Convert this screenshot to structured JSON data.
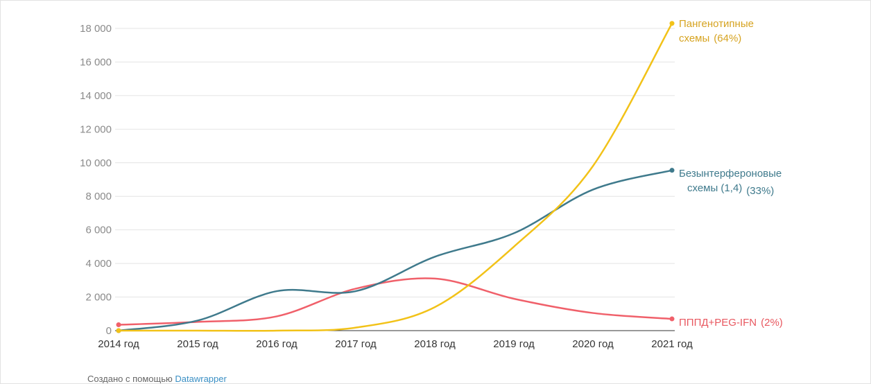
{
  "chart_data": {
    "type": "line",
    "x": [
      "2014 год",
      "2015 год",
      "2016 год",
      "2017 год",
      "2018 год",
      "2019 год",
      "2020 год",
      "2021 год"
    ],
    "ylim": [
      0,
      18000
    ],
    "yticks": [
      0,
      2000,
      4000,
      6000,
      8000,
      10000,
      12000,
      14000,
      16000,
      18000
    ],
    "ytick_labels": [
      "0",
      "2 000",
      "4 000",
      "6 000",
      "8 000",
      "10 000",
      "12 000",
      "14 000",
      "16 000",
      "18 000"
    ],
    "grid": true,
    "series": [
      {
        "key": "pangeno",
        "label_lines": [
          "Пангенотипные",
          "схемы"
        ],
        "label_pct": "(64%)",
        "color": "#f2c218",
        "label_color": "#d6a320",
        "values": [
          0,
          0,
          0,
          180,
          1400,
          5000,
          9800,
          18300
        ]
      },
      {
        "key": "interferon_free",
        "label_lines": [
          "Безынтерфероновые",
          "схемы (1,4)"
        ],
        "label_pct": "(33%)",
        "color": "#3f7a8c",
        "label_color": "#3f7a8c",
        "values": [
          0,
          600,
          2350,
          2350,
          4400,
          5800,
          8400,
          9550
        ]
      },
      {
        "key": "pppd",
        "label_lines": [
          "ПППД+PEG-IFN"
        ],
        "label_pct": "(2%)",
        "color": "#f0606a",
        "label_color": "#e8575f",
        "values": [
          350,
          520,
          850,
          2500,
          3100,
          1900,
          1050,
          700
        ]
      }
    ]
  },
  "footer": {
    "prefix": "Создано с помощью",
    "link_text": "Datawrapper"
  }
}
